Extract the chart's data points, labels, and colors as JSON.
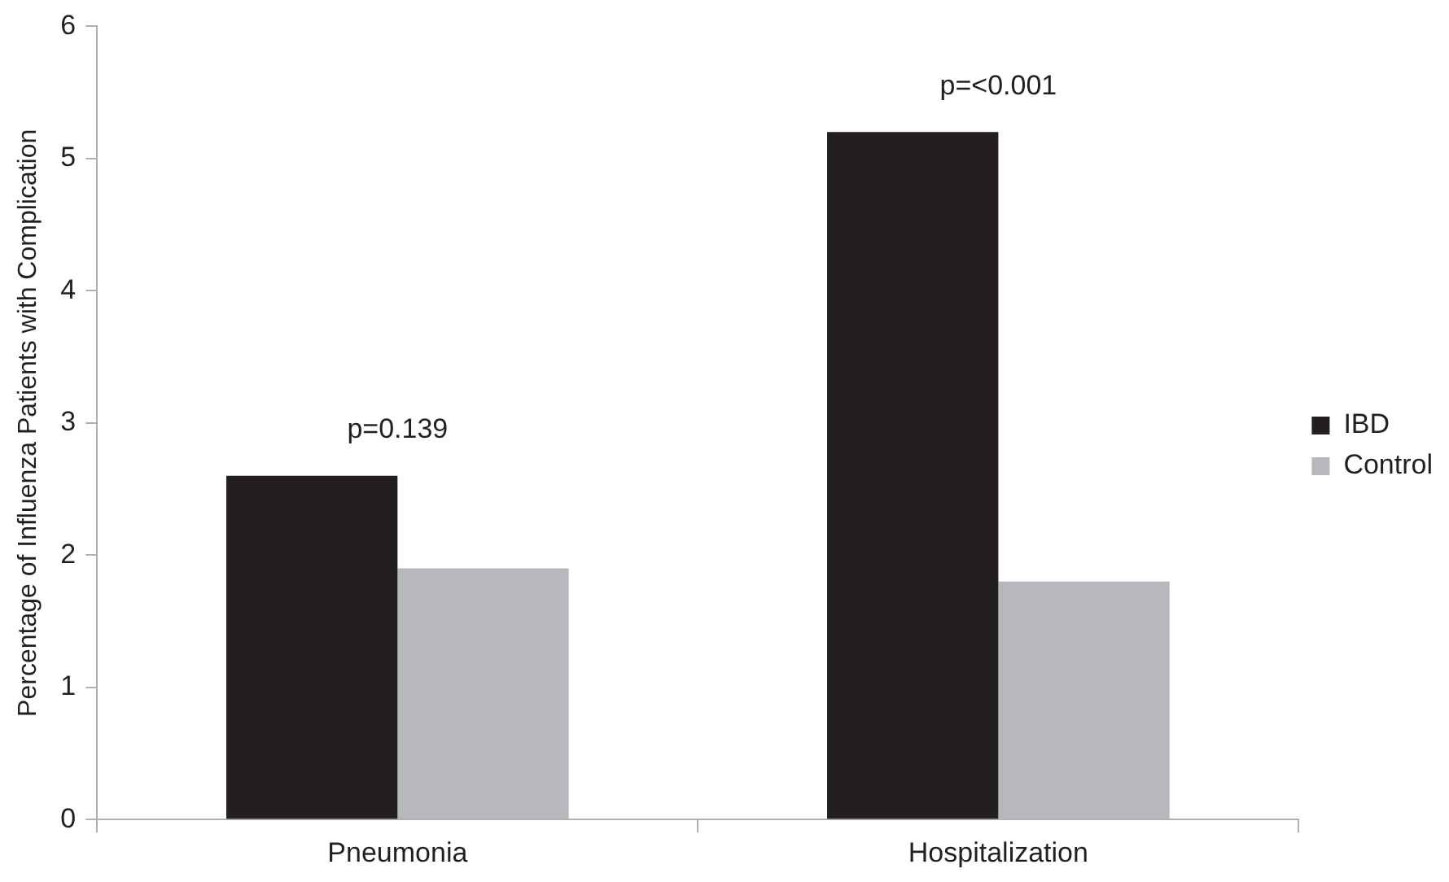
{
  "chart_data": {
    "type": "bar",
    "ylabel": "Percentage of Influenza Patients with Complication",
    "categories": [
      "Pneumonia",
      "Hospitalization"
    ],
    "series": [
      {
        "name": "IBD",
        "color": "#231f20",
        "values": [
          2.6,
          5.2
        ]
      },
      {
        "name": "Control",
        "color": "#b7b8bb",
        "values": [
          1.9,
          1.8
        ]
      }
    ],
    "ylim": [
      0,
      6
    ],
    "yticks": [
      0,
      1,
      2,
      3,
      4,
      5,
      6
    ],
    "grid": false,
    "legend": "right",
    "annotations": [
      "p=0.139",
      "p=<0.001"
    ]
  }
}
